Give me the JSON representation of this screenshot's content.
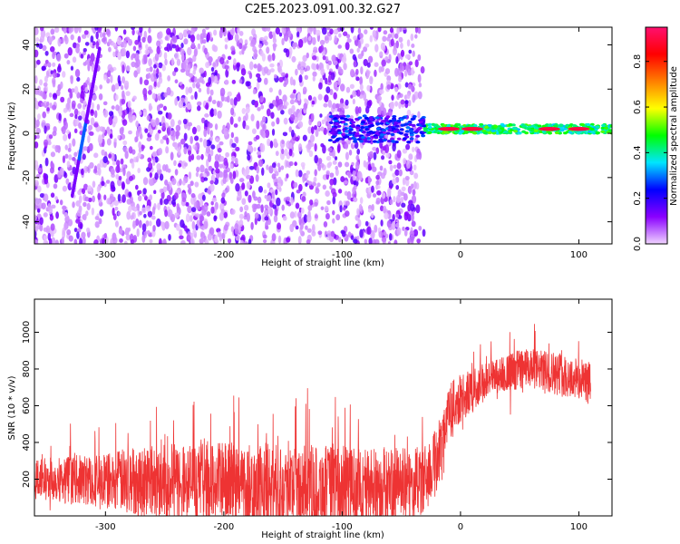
{
  "figure": {
    "title": "C2E5.2023.091.00.32.G27"
  },
  "chart_data": [
    {
      "type": "heatmap",
      "title": "",
      "xlabel": "Height of straight line (km)",
      "ylabel": "Frequency (Hz)",
      "xlim": [
        -360,
        128
      ],
      "ylim": [
        -50,
        48
      ],
      "xticks": [
        -300,
        -200,
        -100,
        0,
        100
      ],
      "yticks": [
        -40,
        -20,
        0,
        20,
        40
      ],
      "grid": false,
      "colorbar": {
        "label": "Normalized spectral amplitude",
        "range": [
          0.0,
          0.95
        ],
        "ticks": [
          0.0,
          0.2,
          0.4,
          0.6,
          0.8
        ],
        "colormap": [
          "#f0d4ff",
          "#8a00ff",
          "#0000ff",
          "#00e5ff",
          "#00ff00",
          "#ffff00",
          "#ff7f00",
          "#ff0000",
          "#ff1070"
        ]
      },
      "features": {
        "noise_region_km": [
          -360,
          -40
        ],
        "noise_amplitude": 0.12,
        "streak": {
          "x_km": [
            -328,
            -305
          ],
          "freq_hz": [
            -28,
            38
          ],
          "amplitude": 0.35
        },
        "signal_line": {
          "x_km": [
            -110,
            128
          ],
          "freq_hz": 2,
          "peak_amplitude": 0.95,
          "peaks_km": [
            -10,
            10,
            75,
            100
          ]
        }
      }
    },
    {
      "type": "line",
      "title": "",
      "xlabel": "Height of straight line (km)",
      "ylabel": "SNR (10 * v/v)",
      "xlim": [
        -360,
        128
      ],
      "ylim": [
        0,
        1180
      ],
      "xticks": [
        -300,
        -200,
        -100,
        0,
        100
      ],
      "yticks": [
        200,
        400,
        600,
        800,
        1000
      ],
      "grid": false,
      "series": [
        {
          "color": "#ee3333",
          "x": [
            -360,
            -330,
            -300,
            -270,
            -240,
            -210,
            -180,
            -150,
            -120,
            -90,
            -60,
            -40,
            -30,
            -20,
            -15,
            -10,
            -5,
            0,
            10,
            20,
            30,
            40,
            50,
            60,
            70,
            80,
            90,
            100,
            110,
            120,
            128
          ],
          "values": [
            200,
            200,
            190,
            195,
            185,
            180,
            170,
            165,
            160,
            160,
            165,
            170,
            200,
            300,
            450,
            550,
            600,
            640,
            680,
            730,
            760,
            780,
            800,
            800,
            790,
            780,
            760,
            740,
            720,
            700,
            700
          ],
          "noise_band": [
            -360,
            -20,
            110,
            130,
            150,
            200,
            210,
            220,
            230,
            230,
            225,
            220,
            210,
            200,
            190,
            180,
            170,
            160,
            150,
            130,
            120,
            110,
            100,
            100,
            110,
            110,
            110,
            120,
            120,
            120,
            120
          ]
        }
      ]
    }
  ]
}
